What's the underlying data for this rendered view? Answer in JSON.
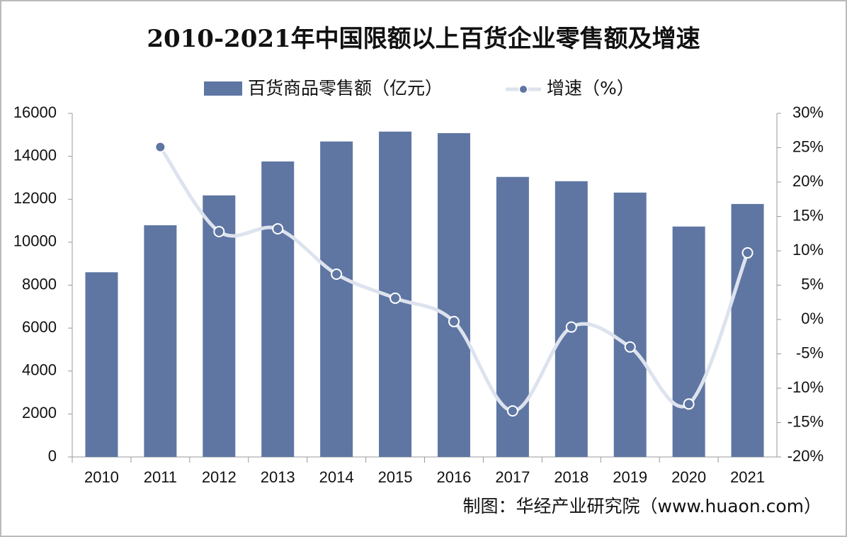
{
  "chart_data": {
    "type": "bar_line",
    "title": "2010-2021年中国限额以上百货企业零售额及增速",
    "source": "制图：华经产业研究院（www.huaon.com）",
    "categories": [
      "2010",
      "2011",
      "2012",
      "2013",
      "2014",
      "2015",
      "2016",
      "2017",
      "2018",
      "2019",
      "2020",
      "2021"
    ],
    "series": [
      {
        "name": "百货商品零售额（亿元）",
        "type": "bar",
        "color": "#5f76a3",
        "values": [
          8600,
          10790,
          12180,
          13760,
          14690,
          15150,
          15080,
          13040,
          12840,
          12310,
          10730,
          11780
        ]
      },
      {
        "name": "增速（%）",
        "type": "line",
        "axis": "y2",
        "color": "#dde3ee",
        "marker_color": "#5f76a3",
        "values": [
          null,
          25.1,
          12.8,
          13.2,
          6.6,
          3.1,
          -0.3,
          -13.3,
          -1.1,
          -4.0,
          -12.3,
          9.7
        ]
      }
    ],
    "ylim": [
      0,
      16000
    ],
    "yticks": [
      0,
      2000,
      4000,
      6000,
      8000,
      10000,
      12000,
      14000,
      16000
    ],
    "y2lim": [
      -20,
      30
    ],
    "y2ticks": [
      {
        "value": -20,
        "label": "-20%"
      },
      {
        "value": -15,
        "label": "-15%"
      },
      {
        "value": -10,
        "label": "-10%"
      },
      {
        "value": -5,
        "label": "-5%"
      },
      {
        "value": 0,
        "label": "0%"
      },
      {
        "value": 5,
        "label": "5%"
      },
      {
        "value": 10,
        "label": "10%"
      },
      {
        "value": 15,
        "label": "15%"
      },
      {
        "value": 20,
        "label": "20%"
      },
      {
        "value": 25,
        "label": "25%"
      },
      {
        "value": 30,
        "label": "30%"
      }
    ],
    "legend": "top"
  }
}
